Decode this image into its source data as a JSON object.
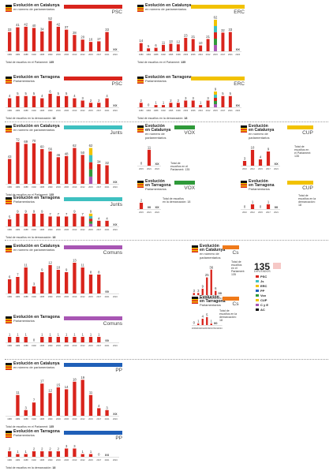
{
  "panels": [
    {
      "id": "psc-cat",
      "x": 7,
      "y": 6,
      "w": 148,
      "title": "Evolución en Catalunya",
      "subtitle": "en número de parlamentarios",
      "party": "PSC",
      "color": "#d9241c",
      "footer": "Total de escaños en el Parlament: ",
      "footer_bold": "135",
      "chart": {
        "h": 40
      }
    },
    {
      "id": "erc-cat",
      "x": 174,
      "y": 6,
      "w": 136,
      "title": "Evolución en Catalunya",
      "subtitle": "en número de parlamentarios",
      "party": "ERC",
      "color": "#f2c200",
      "footer": "Total de escaños en el Parlament: ",
      "footer_bold": "135",
      "chart": {
        "h": 40
      }
    },
    {
      "id": "psc-tar",
      "x": 7,
      "y": 97,
      "w": 148,
      "title": "Evolución en Tarragona",
      "subtitle": "Parlamentarios",
      "party": "PSC",
      "color": "#d9241c",
      "footer": "Total de escaños en la demarcación: ",
      "footer_bold": "18",
      "chart": {
        "h": 20
      }
    },
    {
      "id": "erc-tar",
      "x": 174,
      "y": 97,
      "w": 136,
      "title": "Evolución en Tarragona",
      "subtitle": "Parlamentarios",
      "party": "ERC",
      "color": "#f2c200",
      "footer": "Total de escaños en la demarcación: ",
      "footer_bold": "18",
      "chart": {
        "h": 20
      }
    },
    {
      "id": "junts-cat",
      "x": 7,
      "y": 159,
      "w": 148,
      "title": "Evolución en Catalunya",
      "subtitle": "en número de parlamentarios",
      "party": "Junts",
      "color": "#3ec0c0",
      "footer": "Total de escaños en el Parlament: ",
      "footer_bold": "135",
      "chart": {
        "h": 55
      }
    },
    {
      "id": "vox-cat",
      "x": 174,
      "y": 159,
      "w": 86,
      "title": "Evolución\nen Catalunya",
      "subtitle": "en número de\nparlamentarios",
      "party": "VOX",
      "color": "#2f9a3a",
      "footer": "",
      "footer_bold": "",
      "chart": {
        "h": 22
      }
    },
    {
      "id": "cup-cat",
      "x": 305,
      "y": 159,
      "w": 108,
      "title": "Evolución\nen Catalunya",
      "subtitle": "en número de\nparlamentarios",
      "party": "CUP",
      "color": "#f2c200",
      "footer": "",
      "footer_bold": "",
      "chart": {
        "h": 22
      }
    },
    {
      "id": "junts-tar",
      "x": 7,
      "y": 250,
      "w": 148,
      "title": "Evolución en Tarragona",
      "subtitle": "Parlamentarios",
      "party": "Junts",
      "color": "#3ec0c0",
      "footer": "Total de escaños en la demarcación: ",
      "footer_bold": "18",
      "chart": {
        "h": 18
      }
    },
    {
      "id": "vox-tar",
      "x": 174,
      "y": 229,
      "w": 86,
      "title": "Evolución\nen Tarragona",
      "subtitle": "Parlamentarios",
      "party": "VOX",
      "color": "#2f9a3a",
      "footer": "",
      "footer_bold": "",
      "chart": {
        "h": 12
      }
    },
    {
      "id": "cup-tar",
      "x": 305,
      "y": 229,
      "w": 108,
      "title": "Evolución\nen Tarragona",
      "subtitle": "Parlamentarios",
      "party": "CUP",
      "color": "#f2c200",
      "footer": "",
      "footer_bold": "",
      "chart": {
        "h": 12
      }
    },
    {
      "id": "comuns-cat",
      "x": 7,
      "y": 311,
      "w": 148,
      "title": "Evolución en Catalunya",
      "subtitle": "en número de parlamentarios",
      "party": "Comuns",
      "color": "#a856b4",
      "footer": "",
      "footer_bold": "",
      "chart": {
        "h": 42
      }
    },
    {
      "id": "cs-cat",
      "x": 243,
      "y": 311,
      "w": 70,
      "title": "Evolución\nen Catalunya",
      "subtitle": "en número de\nparlamentarios",
      "party": "Cs",
      "color": "#f07a1a",
      "footer": "",
      "footer_bold": "",
      "chart": {
        "h": 34
      }
    },
    {
      "id": "comuns-tar",
      "x": 7,
      "y": 401,
      "w": 148,
      "title": "Evolución en Tarragona",
      "subtitle": "Parlamentarios",
      "party": "Comuns",
      "color": "#a856b4",
      "footer": "",
      "footer_bold": "",
      "chart": {
        "h": 14
      }
    },
    {
      "id": "cs-tar",
      "x": 243,
      "y": 376,
      "w": 70,
      "title": "Evolución\nen Tarragona",
      "subtitle": "Parlamentarios",
      "party": "Cs",
      "color": "#f07a1a",
      "footer": "",
      "footer_bold": "",
      "chart": {
        "h": 12
      }
    },
    {
      "id": "pp-cat",
      "x": 7,
      "y": 460,
      "w": 148,
      "title": "Evolución en Catalunya",
      "subtitle": "en número de parlamentarios",
      "party": "PP",
      "color": "#1f5fb8",
      "footer": "Total de escaños en el Parlament: ",
      "footer_bold": "135",
      "chart": {
        "h": 48
      }
    },
    {
      "id": "pp-tar",
      "x": 7,
      "y": 546,
      "w": 148,
      "title": "Evolución en Tarragona",
      "subtitle": "Parlamentarios",
      "party": "PP",
      "color": "#1f5fb8",
      "footer": "Total de escaños en la demarcación: ",
      "footer_bold": "18",
      "chart": {
        "h": 14
      }
    }
  ],
  "notes": [
    {
      "id": "vox-cat-note",
      "x": 216,
      "y": 205,
      "text": "Total de\nescaños en el\nParlament: 135"
    },
    {
      "id": "vox-tar-note",
      "x": 206,
      "y": 250,
      "text": "Total de escaños\nen la demarcación: 18"
    },
    {
      "id": "cup-cat-note",
      "x": 373,
      "y": 184,
      "text": "Total de\nescaños en\nel Parlament:\n135"
    },
    {
      "id": "cup-tar-note",
      "x": 378,
      "y": 246,
      "text": "Total de\nescaños en la\ndemarcación:\n18"
    },
    {
      "id": "cs-cat-note",
      "x": 293,
      "y": 330,
      "text": "Total de\nescaños\nen el\nParlament:\n135"
    },
    {
      "id": "cs-tar-note",
      "x": 278,
      "y": 392,
      "text": "Total de\nescaños en la\ndemarcación:\n18"
    }
  ],
  "legend": {
    "total": "135",
    "caption": "DIPUTADOS",
    "items": [
      {
        "label": "PSC",
        "color": "#d9241c"
      },
      {
        "label": "Js",
        "color": "#3ec0c0"
      },
      {
        "label": "ERC",
        "color": "#f2c200"
      },
      {
        "label": "PP",
        "color": "#1f5fb8"
      },
      {
        "label": "Vox",
        "color": "#2f9a3a"
      },
      {
        "label": "CUP",
        "color": "#f2c200"
      },
      {
        "label": "C y E",
        "color": "#a856b4"
      },
      {
        "label": "AC",
        "color": "#111111"
      }
    ]
  },
  "chart_data": [
    {
      "type": "bar",
      "panel": "psc-cat",
      "categories": [
        "1980",
        "1984",
        "1988",
        "1992",
        "1995",
        "1999",
        "2003",
        "2006",
        "2010",
        "2012",
        "2015",
        "2017",
        "2021",
        "2024"
      ],
      "values": [
        33,
        41,
        42,
        40,
        34,
        52,
        42,
        37,
        28,
        20,
        16,
        17,
        33,
        null
      ],
      "labels": [
        "33",
        "41",
        "42",
        "40",
        "34",
        "52",
        "42",
        "37",
        "28",
        "20",
        "16",
        "17",
        "33",
        "XX"
      ],
      "ylim": [
        0,
        54
      ]
    },
    {
      "type": "bar",
      "panel": "erc-cat",
      "categories": [
        "1980",
        "1984",
        "1988",
        "1992",
        "1995",
        "1999",
        "2003",
        "2006",
        "2010",
        "2012",
        "2015",
        "2017",
        "2021",
        "2024"
      ],
      "values": [
        14,
        5,
        6,
        11,
        13,
        12,
        23,
        21,
        10,
        21,
        null,
        32,
        33,
        null
      ],
      "labels": [
        "14",
        "5",
        "6",
        "11",
        "13",
        "12",
        "23",
        "21",
        "10",
        "21",
        "62",
        "32",
        "33",
        "XX"
      ],
      "ylim": [
        0,
        54
      ]
    },
    {
      "type": "bar",
      "panel": "psc-tar",
      "categories": [
        "1980",
        "1984",
        "1988",
        "1992",
        "1995",
        "1999",
        "2003",
        "2006",
        "2010",
        "2012",
        "2015",
        "2017",
        "2021",
        "2024"
      ],
      "values": [
        4,
        5,
        5,
        5,
        4,
        6,
        5,
        5,
        4,
        3,
        2,
        2,
        4,
        null
      ],
      "labels": [
        "4",
        "5",
        "5",
        "5",
        "4",
        "6",
        "5",
        "5",
        "4",
        "3",
        "2",
        "2",
        "4",
        "XX"
      ],
      "ylim": [
        0,
        7
      ]
    },
    {
      "type": "bar",
      "panel": "erc-tar",
      "categories": [
        "1980",
        "1984",
        "1988",
        "1992",
        "1995",
        "1999",
        "2003",
        "2006",
        "2010",
        "2012",
        "2015",
        "2017",
        "2021",
        "2024"
      ],
      "values": [
        2,
        0,
        1,
        1,
        2,
        2,
        3,
        3,
        1,
        3,
        null,
        5,
        5,
        null
      ],
      "labels": [
        "2",
        "0",
        "1",
        "1",
        "2",
        "2",
        "3",
        "3",
        "1",
        "3",
        "9",
        "5",
        "5",
        "XX"
      ],
      "ylim": [
        0,
        7
      ]
    },
    {
      "type": "bar",
      "panel": "junts-cat",
      "categories": [
        "1980",
        "1984",
        "1988",
        "1992",
        "1995",
        "1999",
        "2003",
        "2006",
        "2010",
        "2012",
        "2015",
        "2017",
        "2021",
        "2024"
      ],
      "values": [
        43,
        72,
        69,
        70,
        60,
        56,
        46,
        48,
        62,
        50,
        null,
        34,
        32,
        null
      ],
      "labels": [
        "43",
        "72",
        "69",
        "70",
        "60",
        "56",
        "46",
        "48",
        "62",
        "50",
        "62",
        "34",
        "32",
        "XX"
      ],
      "ylim": [
        0,
        75
      ]
    },
    {
      "type": "bar",
      "panel": "vox-cat",
      "categories": [
        "2015",
        "2021",
        "2024"
      ],
      "values": [
        0,
        11,
        null
      ],
      "labels": [
        "0",
        "11",
        "XX"
      ],
      "ylim": [
        0,
        12
      ]
    },
    {
      "type": "bar",
      "panel": "cup-cat",
      "categories": [
        "2010",
        "2012",
        "2015",
        "2017",
        "2021"
      ],
      "values": [
        3,
        10,
        4,
        9,
        null
      ],
      "labels": [
        "3",
        "10",
        "4",
        "9",
        "XX"
      ],
      "ylim": [
        0,
        11
      ]
    },
    {
      "type": "bar",
      "panel": "junts-tar",
      "categories": [
        "1980",
        "1984",
        "1988",
        "1992",
        "1995",
        "1999",
        "2003",
        "2006",
        "2010",
        "2012",
        "2015",
        "2017",
        "2021",
        "2024"
      ],
      "values": [
        5,
        9,
        9,
        9,
        9,
        7,
        7,
        7,
        9,
        7,
        null,
        4,
        4,
        null
      ],
      "labels": [
        "5",
        "9",
        "9",
        "9",
        "9",
        "7",
        "7",
        "7",
        "9",
        "7",
        "9",
        "4",
        "4",
        "XX"
      ],
      "ylim": [
        0,
        10
      ]
    },
    {
      "type": "bar",
      "panel": "vox-tar",
      "categories": [
        "2015",
        "2021",
        "2024"
      ],
      "values": [
        2,
        null,
        null
      ],
      "labels": [
        "2",
        "00",
        "XX"
      ],
      "ylim": [
        0,
        3
      ]
    },
    {
      "type": "bar",
      "panel": "cup-tar",
      "categories": [
        "2010",
        "2012",
        "2015",
        "2017",
        "2021"
      ],
      "values": [
        0,
        1,
        0,
        1,
        null
      ],
      "labels": [
        "0",
        "1",
        "0",
        "1",
        "00"
      ],
      "ylim": [
        0,
        2
      ]
    },
    {
      "type": "bar",
      "panel": "comuns-cat",
      "categories": [
        "1980",
        "1984",
        "1988",
        "1992",
        "1995",
        "1999",
        "2003",
        "2006",
        "2010",
        "2012",
        "2015",
        "2017",
        "2021",
        "2024"
      ],
      "values": [
        6,
        7,
        11,
        3,
        9,
        12,
        10,
        9,
        13,
        11,
        8,
        8,
        null,
        null
      ],
      "labels": [
        "6",
        "7",
        "11",
        "3",
        "9",
        "12",
        "10",
        "9",
        "13",
        "11",
        "8",
        "8",
        "00",
        ""
      ],
      "ylim": [
        0,
        14
      ]
    },
    {
      "type": "bar",
      "panel": "cs-cat",
      "categories": [
        "2006",
        "2010",
        "2012",
        "2015",
        "2017",
        "2021",
        "2024"
      ],
      "values": [
        3,
        3,
        9,
        25,
        36,
        6,
        null
      ],
      "labels": [
        "3",
        "3",
        "9",
        "25",
        "36",
        "6",
        "00"
      ],
      "ylim": [
        0,
        38
      ]
    },
    {
      "type": "bar",
      "panel": "comuns-tar",
      "categories": [
        "1980",
        "1984",
        "1988",
        "1992",
        "1995",
        "1999",
        "2003",
        "2006",
        "2010",
        "2012",
        "2015",
        "2017",
        "2021",
        "2024"
      ],
      "values": [
        1,
        1,
        1,
        0,
        1,
        1,
        1,
        1,
        1,
        1,
        1,
        1,
        null,
        null
      ],
      "labels": [
        "1",
        "1",
        "1",
        "0",
        "1",
        "1",
        "1",
        "1",
        "1",
        "1",
        "1",
        "1",
        "00",
        ""
      ],
      "ylim": [
        0,
        2
      ]
    },
    {
      "type": "bar",
      "panel": "cs-tar",
      "categories": [
        "2006",
        "2010",
        "2012",
        "2015",
        "2017",
        "2021",
        "2024"
      ],
      "values": [
        0,
        1,
        4,
        5,
        1,
        null,
        null
      ],
      "labels": [
        "0",
        "1",
        "4",
        "5",
        "1",
        "00",
        ""
      ],
      "ylim": [
        0,
        6
      ]
    },
    {
      "type": "bar",
      "panel": "pp-cat",
      "categories": [
        "1980",
        "1984",
        "1988",
        "1992",
        "1995",
        "1999",
        "2003",
        "2006",
        "2010",
        "2012",
        "2015",
        "2017",
        "2021",
        "2024"
      ],
      "values": [
        null,
        11,
        3,
        7,
        17,
        12,
        15,
        14,
        18,
        19,
        11,
        4,
        3,
        null
      ],
      "labels": [
        "",
        "11",
        "3",
        "7",
        "17",
        "12",
        "15",
        "14",
        "18",
        "19",
        "11",
        "4",
        "3",
        "XX"
      ],
      "ylim": [
        0,
        20
      ]
    },
    {
      "type": "bar",
      "panel": "pp-tar",
      "categories": [
        "1980",
        "1984",
        "1988",
        "1992",
        "1995",
        "1999",
        "2003",
        "2006",
        "2010",
        "2012",
        "2015",
        "2017",
        "2021",
        "2024"
      ],
      "values": [
        2,
        1,
        1,
        2,
        2,
        2,
        2,
        3,
        3,
        1,
        1,
        0,
        null,
        null
      ],
      "labels": [
        "2",
        "1",
        "1",
        "2",
        "2",
        "2",
        "2",
        "3",
        "3",
        "1",
        "1",
        "0",
        "XX",
        ""
      ],
      "ylim": [
        0,
        4
      ]
    }
  ]
}
